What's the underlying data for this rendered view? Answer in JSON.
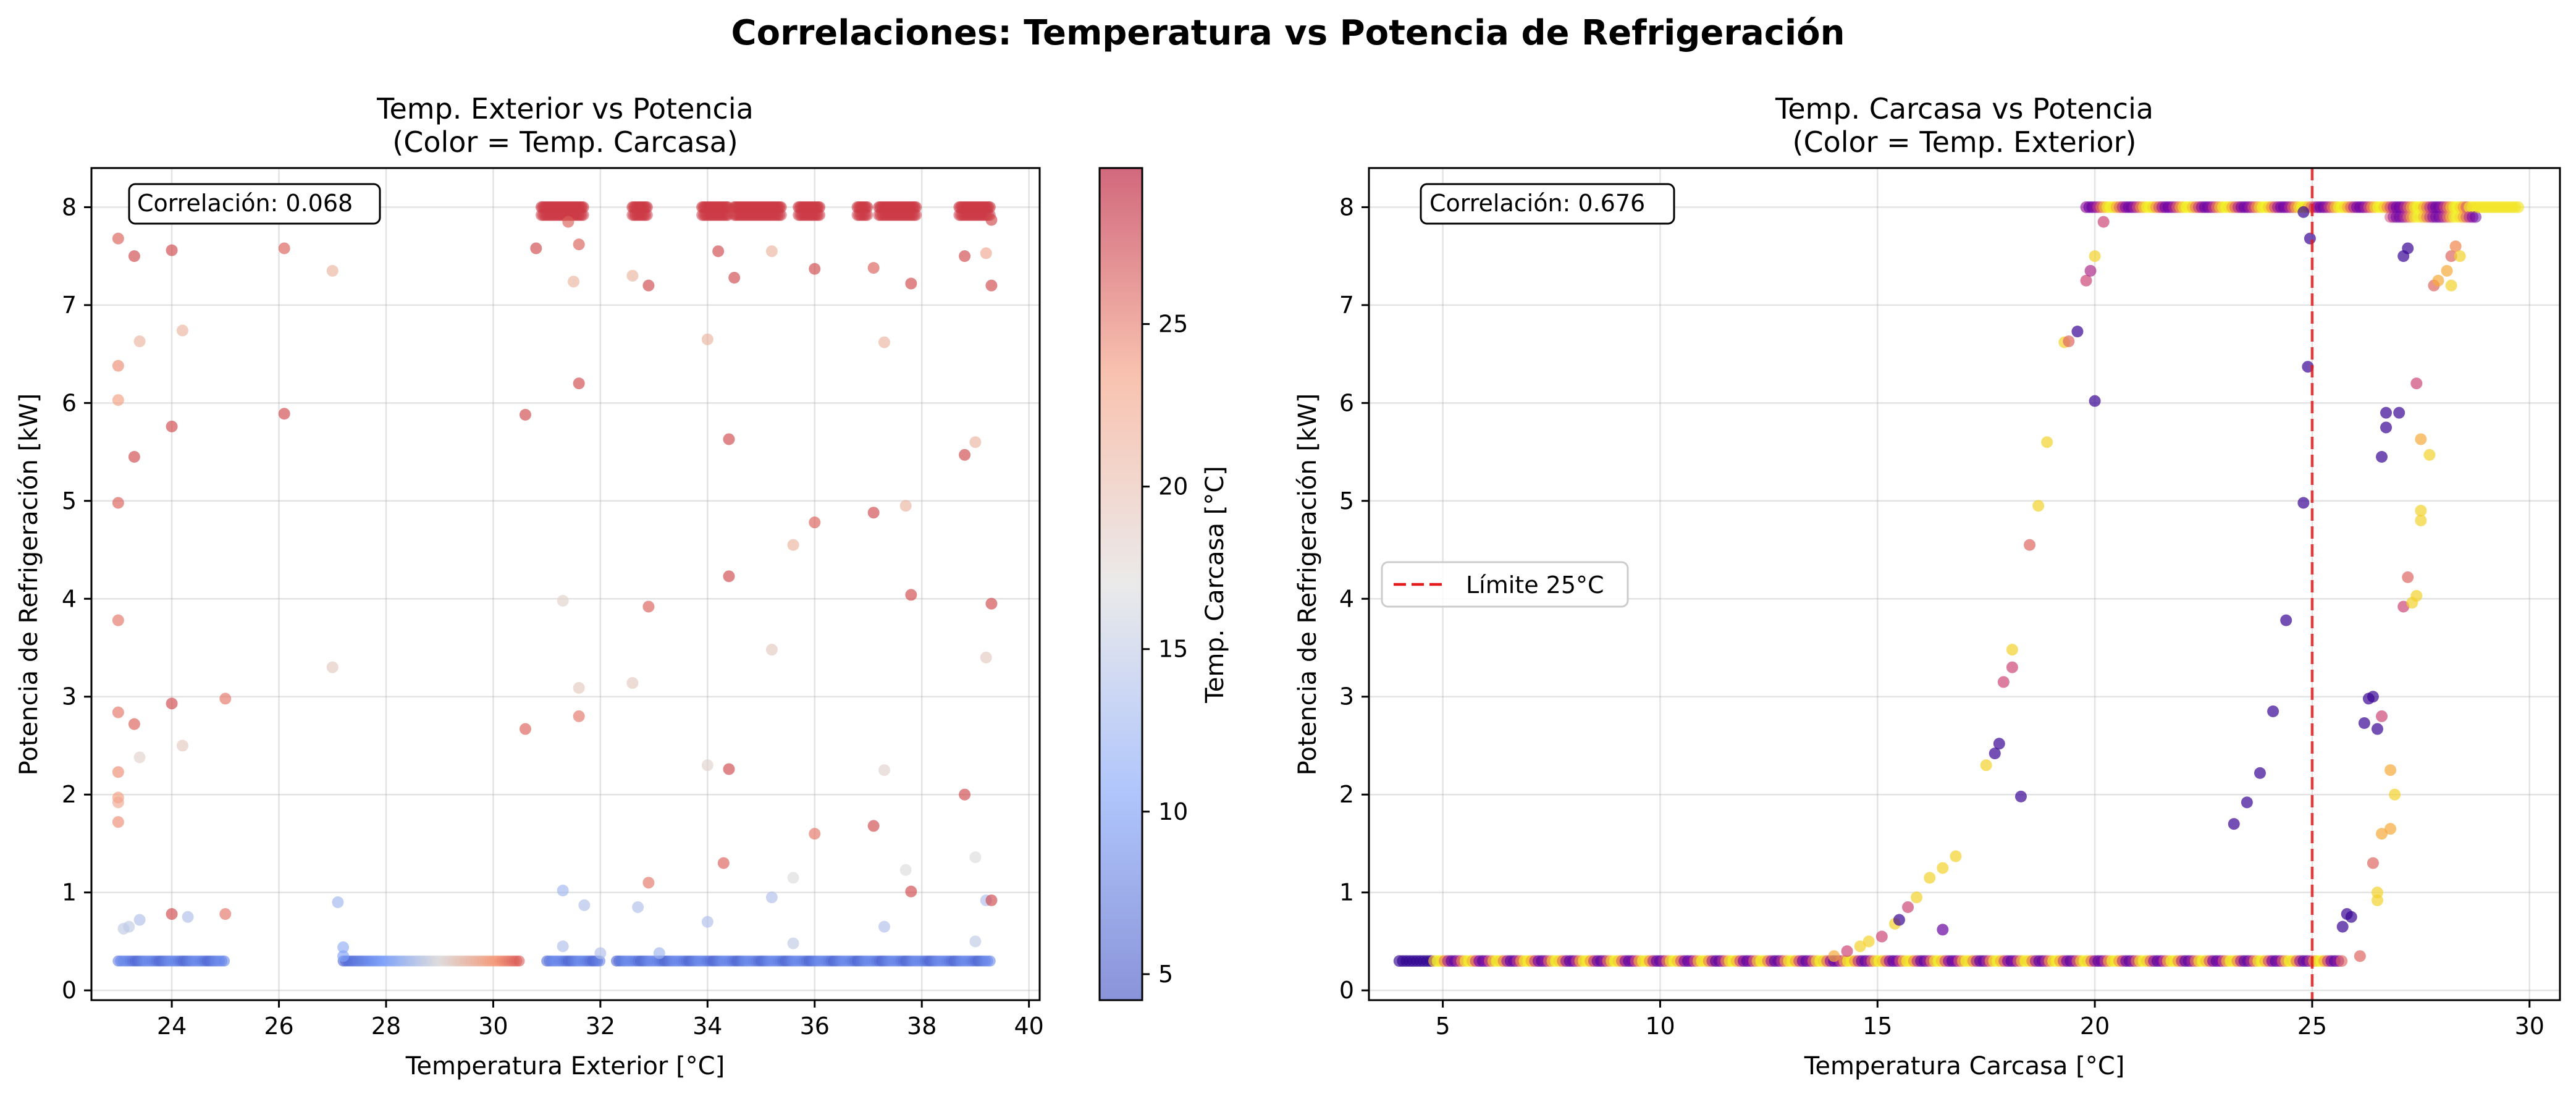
{
  "suptitle": "Correlaciones: Temperatura vs Potencia de Refrigeración",
  "chart_data": [
    {
      "type": "scatter",
      "title_line1": "Temp. Exterior vs Potencia",
      "title_line2": "(Color = Temp. Carcasa)",
      "xlabel": "Temperatura Exterior [°C]",
      "ylabel": "Potencia de Refrigeración [kW]",
      "xlim": [
        22.5,
        40.2
      ],
      "ylim": [
        -0.1,
        8.4
      ],
      "xticks": [
        24,
        26,
        28,
        30,
        32,
        34,
        36,
        38,
        40
      ],
      "yticks": [
        0,
        1,
        2,
        3,
        4,
        5,
        6,
        7,
        8
      ],
      "grid": true,
      "annotation": "Correlación: 0.068",
      "colormap": "coolwarm",
      "colorbar": {
        "label": "Temp. Carcasa [°C]",
        "range": [
          4.2,
          29.8
        ],
        "ticks": [
          5,
          10,
          15,
          20,
          25
        ]
      },
      "colors": {
        "cold": "#3b4cc0",
        "mid": "#dddddd",
        "hot": "#b40426"
      },
      "baseline_band": {
        "y": 0.3,
        "x_ranges": [
          [
            23,
            25
          ],
          [
            27.2,
            30.5
          ],
          [
            31,
            32
          ],
          [
            32.3,
            39.3
          ]
        ],
        "color_range": [
          6,
          26
        ]
      },
      "saturation_clusters": {
        "y": 8.0,
        "x_ranges": [
          [
            30.9,
            31.7
          ],
          [
            32.6,
            32.9
          ],
          [
            33.9,
            34.4
          ],
          [
            34.5,
            35.4
          ],
          [
            35.7,
            36.1
          ],
          [
            36.8,
            37.0
          ],
          [
            37.2,
            37.9
          ],
          [
            38.7,
            39.3
          ]
        ],
        "color_value": 27.5
      },
      "points": [
        [
          23.0,
          7.68,
          26
        ],
        [
          23.3,
          7.5,
          27
        ],
        [
          23.0,
          6.38,
          24
        ],
        [
          23.0,
          6.03,
          23
        ],
        [
          23.3,
          5.45,
          27
        ],
        [
          23.0,
          4.98,
          26
        ],
        [
          23.0,
          3.78,
          25
        ],
        [
          23.0,
          2.84,
          25
        ],
        [
          23.3,
          2.72,
          26
        ],
        [
          23.0,
          2.23,
          24
        ],
        [
          23.0,
          1.97,
          23
        ],
        [
          23.0,
          1.92,
          22
        ],
        [
          23.0,
          1.72,
          24
        ],
        [
          23.4,
          6.63,
          21
        ],
        [
          23.4,
          2.38,
          18
        ],
        [
          23.2,
          0.65,
          15
        ],
        [
          23.4,
          0.72,
          14
        ],
        [
          23.1,
          0.63,
          15
        ],
        [
          24.0,
          7.56,
          27
        ],
        [
          24.0,
          5.76,
          27
        ],
        [
          24.0,
          2.93,
          27
        ],
        [
          24.0,
          0.78,
          27
        ],
        [
          24.2,
          6.74,
          21
        ],
        [
          24.2,
          2.5,
          19
        ],
        [
          24.3,
          0.75,
          14
        ],
        [
          25.0,
          2.98,
          25
        ],
        [
          25.0,
          0.78,
          25
        ],
        [
          26.1,
          7.58,
          26
        ],
        [
          26.1,
          5.89,
          27
        ],
        [
          27.0,
          7.35,
          21
        ],
        [
          27.0,
          3.3,
          19
        ],
        [
          27.1,
          0.9,
          13
        ],
        [
          27.2,
          0.44,
          12
        ],
        [
          27.2,
          0.35,
          11
        ],
        [
          30.6,
          5.88,
          27
        ],
        [
          30.6,
          2.67,
          26
        ],
        [
          30.8,
          7.58,
          27
        ],
        [
          31.3,
          0.45,
          14
        ],
        [
          31.3,
          1.02,
          13
        ],
        [
          31.3,
          3.98,
          18
        ],
        [
          31.4,
          7.85,
          26
        ],
        [
          31.5,
          7.24,
          21
        ],
        [
          31.6,
          7.62,
          26
        ],
        [
          31.6,
          6.2,
          27
        ],
        [
          31.6,
          3.09,
          19
        ],
        [
          31.6,
          2.8,
          25
        ],
        [
          31.7,
          0.87,
          14
        ],
        [
          32.0,
          0.38,
          14
        ],
        [
          32.6,
          7.3,
          21
        ],
        [
          32.6,
          3.14,
          19
        ],
        [
          32.7,
          0.85,
          14
        ],
        [
          32.9,
          7.2,
          27
        ],
        [
          32.9,
          3.92,
          26
        ],
        [
          32.9,
          1.1,
          25
        ],
        [
          33.1,
          0.38,
          13
        ],
        [
          34.0,
          6.65,
          21
        ],
        [
          34.0,
          2.3,
          18
        ],
        [
          34.0,
          0.7,
          14
        ],
        [
          34.2,
          7.55,
          27
        ],
        [
          34.3,
          1.3,
          26
        ],
        [
          34.4,
          5.63,
          27
        ],
        [
          34.4,
          4.23,
          27
        ],
        [
          34.4,
          2.26,
          27
        ],
        [
          34.5,
          7.28,
          27
        ],
        [
          35.2,
          7.55,
          21
        ],
        [
          35.2,
          3.48,
          19
        ],
        [
          35.2,
          0.95,
          14
        ],
        [
          35.6,
          4.55,
          21
        ],
        [
          35.6,
          1.15,
          17
        ],
        [
          35.6,
          0.48,
          15
        ],
        [
          36.0,
          7.37,
          27
        ],
        [
          36.0,
          4.78,
          26
        ],
        [
          36.0,
          1.6,
          25
        ],
        [
          37.1,
          7.38,
          26
        ],
        [
          37.1,
          4.88,
          27
        ],
        [
          37.1,
          1.68,
          27
        ],
        [
          37.3,
          6.62,
          21
        ],
        [
          37.3,
          2.25,
          18
        ],
        [
          37.3,
          0.65,
          14
        ],
        [
          37.7,
          4.95,
          21
        ],
        [
          37.7,
          1.23,
          17
        ],
        [
          37.8,
          7.22,
          27
        ],
        [
          37.8,
          4.04,
          27
        ],
        [
          37.8,
          1.01,
          27
        ],
        [
          38.8,
          7.5,
          27
        ],
        [
          38.8,
          5.47,
          27
        ],
        [
          38.8,
          2.0,
          27
        ],
        [
          39.0,
          5.6,
          21
        ],
        [
          39.0,
          1.36,
          17
        ],
        [
          39.0,
          0.5,
          15
        ],
        [
          39.2,
          7.53,
          22
        ],
        [
          39.2,
          3.4,
          19
        ],
        [
          39.2,
          0.92,
          14
        ],
        [
          39.3,
          7.2,
          27
        ],
        [
          39.3,
          7.87,
          27
        ],
        [
          39.3,
          3.95,
          27
        ],
        [
          39.3,
          0.92,
          27
        ]
      ]
    },
    {
      "type": "scatter",
      "title_line1": "Temp. Carcasa vs Potencia",
      "title_line2": "(Color = Temp. Exterior)",
      "xlabel": "Temperatura Carcasa [°C]",
      "ylabel": "Potencia de Refrigeración [kW]",
      "xlim": [
        3.3,
        30.7
      ],
      "ylim": [
        -0.1,
        8.4
      ],
      "xticks": [
        5,
        10,
        15,
        20,
        25,
        30
      ],
      "yticks": [
        0,
        1,
        2,
        3,
        4,
        5,
        6,
        7,
        8
      ],
      "grid": true,
      "annotation": "Correlación: 0.676",
      "colormap": "plasma",
      "colors": {
        "low": "#0d0887",
        "mid": "#cc4778",
        "high": "#f0f921",
        "limit_line": "#e41a1c"
      },
      "reference_line": {
        "x": 25,
        "label": "Límite 25°C"
      },
      "legend": "center-left",
      "baseline_band": {
        "y": 0.3,
        "x_range": [
          4,
          25.7
        ]
      },
      "plateau": {
        "y": 8.0,
        "x_range": [
          19.8,
          29.8
        ]
      },
      "points": [
        [
          14.0,
          0.35,
          0.8
        ],
        [
          14.3,
          0.4,
          0.5
        ],
        [
          14.6,
          0.45,
          0.9
        ],
        [
          14.8,
          0.5,
          0.9
        ],
        [
          15.1,
          0.55,
          0.5
        ],
        [
          15.4,
          0.68,
          0.9
        ],
        [
          15.5,
          0.72,
          0.1
        ],
        [
          15.7,
          0.85,
          0.5
        ],
        [
          15.9,
          0.95,
          0.9
        ],
        [
          16.2,
          1.15,
          0.9
        ],
        [
          16.5,
          1.25,
          0.9
        ],
        [
          16.8,
          1.37,
          0.9
        ],
        [
          16.5,
          0.62,
          0.2
        ],
        [
          17.5,
          2.3,
          0.9
        ],
        [
          17.7,
          2.42,
          0.1
        ],
        [
          17.8,
          2.52,
          0.1
        ],
        [
          17.9,
          3.15,
          0.5
        ],
        [
          18.1,
          3.3,
          0.5
        ],
        [
          18.1,
          3.48,
          0.9
        ],
        [
          18.3,
          1.98,
          0.1
        ],
        [
          18.5,
          4.55,
          0.6
        ],
        [
          18.7,
          4.95,
          0.9
        ],
        [
          18.9,
          5.6,
          0.9
        ],
        [
          19.3,
          6.62,
          0.9
        ],
        [
          19.4,
          6.63,
          0.6
        ],
        [
          19.6,
          6.73,
          0.1
        ],
        [
          19.8,
          7.25,
          0.5
        ],
        [
          19.9,
          7.35,
          0.4
        ],
        [
          20.0,
          7.5,
          0.9
        ],
        [
          20.0,
          6.02,
          0.1
        ],
        [
          20.2,
          7.85,
          0.5
        ],
        [
          23.2,
          1.7,
          0.1
        ],
        [
          23.5,
          1.92,
          0.1
        ],
        [
          23.8,
          2.22,
          0.1
        ],
        [
          24.1,
          2.85,
          0.1
        ],
        [
          24.4,
          3.78,
          0.1
        ],
        [
          24.8,
          4.98,
          0.1
        ],
        [
          24.9,
          6.37,
          0.1
        ],
        [
          24.95,
          7.68,
          0.1
        ],
        [
          24.8,
          7.95,
          0.1
        ],
        [
          25.7,
          0.65,
          0.1
        ],
        [
          25.8,
          0.78,
          0.1
        ],
        [
          25.9,
          0.75,
          0.1
        ],
        [
          26.1,
          0.35,
          0.6
        ],
        [
          26.2,
          2.73,
          0.1
        ],
        [
          26.3,
          2.98,
          0.1
        ],
        [
          26.4,
          3.0,
          0.1
        ],
        [
          26.4,
          1.3,
          0.6
        ],
        [
          26.5,
          1.0,
          0.9
        ],
        [
          26.5,
          0.92,
          0.9
        ],
        [
          26.5,
          2.67,
          0.1
        ],
        [
          26.6,
          5.45,
          0.1
        ],
        [
          26.6,
          2.8,
          0.5
        ],
        [
          26.6,
          1.6,
          0.8
        ],
        [
          26.7,
          5.75,
          0.1
        ],
        [
          26.7,
          5.9,
          0.1
        ],
        [
          26.8,
          2.25,
          0.8
        ],
        [
          26.8,
          1.65,
          0.8
        ],
        [
          26.9,
          2.0,
          0.9
        ],
        [
          27.0,
          5.9,
          0.1
        ],
        [
          27.1,
          3.92,
          0.5
        ],
        [
          27.1,
          7.5,
          0.1
        ],
        [
          27.2,
          4.22,
          0.6
        ],
        [
          27.2,
          7.58,
          0.1
        ],
        [
          27.3,
          3.96,
          0.9
        ],
        [
          27.4,
          4.03,
          0.9
        ],
        [
          27.4,
          6.2,
          0.5
        ],
        [
          27.5,
          4.8,
          0.9
        ],
        [
          27.5,
          4.9,
          0.9
        ],
        [
          27.5,
          5.63,
          0.8
        ],
        [
          27.7,
          5.47,
          0.9
        ],
        [
          27.8,
          7.2,
          0.6
        ],
        [
          27.9,
          7.25,
          0.8
        ],
        [
          28.1,
          7.35,
          0.8
        ],
        [
          28.2,
          7.2,
          0.9
        ],
        [
          28.2,
          7.5,
          0.6
        ],
        [
          28.3,
          7.6,
          0.7
        ],
        [
          28.4,
          7.5,
          0.9
        ]
      ]
    }
  ]
}
